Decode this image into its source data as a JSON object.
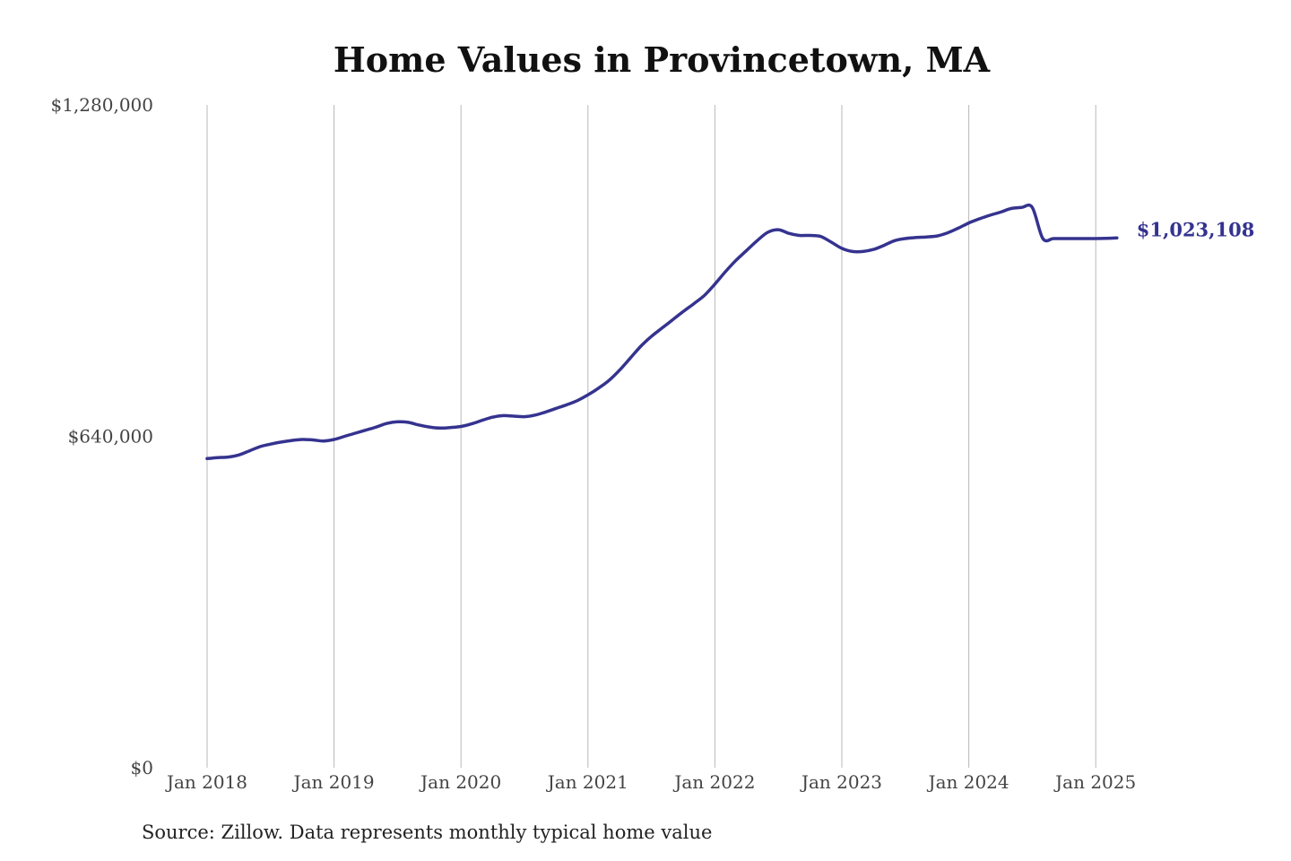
{
  "chart_data": {
    "type": "line",
    "title": "Home Values in Provincetown, MA",
    "source_note": "Source: Zillow. Data represents monthly typical home value",
    "xlabel": "",
    "ylabel": "",
    "ylim": [
      0,
      1280000
    ],
    "y_ticks": [
      {
        "value": 0,
        "label": "$0"
      },
      {
        "value": 640000,
        "label": "$640,000"
      },
      {
        "value": 1280000,
        "label": "$1,280,000"
      }
    ],
    "x_ticks": [
      {
        "date": "2018-01",
        "label": "Jan 2018"
      },
      {
        "date": "2019-01",
        "label": "Jan 2019"
      },
      {
        "date": "2020-01",
        "label": "Jan 2020"
      },
      {
        "date": "2021-01",
        "label": "Jan 2021"
      },
      {
        "date": "2022-01",
        "label": "Jan 2022"
      },
      {
        "date": "2023-01",
        "label": "Jan 2023"
      },
      {
        "date": "2024-01",
        "label": "Jan 2024"
      },
      {
        "date": "2025-01",
        "label": "Jan 2025"
      }
    ],
    "xlim": [
      "2018-01",
      "2025-03"
    ],
    "grid": "vertical",
    "line_color": "#35338f",
    "end_label": "$1,023,108",
    "x": [
      "2018-01",
      "2018-02",
      "2018-03",
      "2018-04",
      "2018-05",
      "2018-06",
      "2018-07",
      "2018-08",
      "2018-09",
      "2018-10",
      "2018-11",
      "2018-12",
      "2019-01",
      "2019-02",
      "2019-03",
      "2019-04",
      "2019-05",
      "2019-06",
      "2019-07",
      "2019-08",
      "2019-09",
      "2019-10",
      "2019-11",
      "2019-12",
      "2020-01",
      "2020-02",
      "2020-03",
      "2020-04",
      "2020-05",
      "2020-06",
      "2020-07",
      "2020-08",
      "2020-09",
      "2020-10",
      "2020-11",
      "2020-12",
      "2021-01",
      "2021-02",
      "2021-03",
      "2021-04",
      "2021-05",
      "2021-06",
      "2021-07",
      "2021-08",
      "2021-09",
      "2021-10",
      "2021-11",
      "2021-12",
      "2022-01",
      "2022-02",
      "2022-03",
      "2022-04",
      "2022-05",
      "2022-06",
      "2022-07",
      "2022-08",
      "2022-09",
      "2022-10",
      "2022-11",
      "2022-12",
      "2023-01",
      "2023-02",
      "2023-03",
      "2023-04",
      "2023-05",
      "2023-06",
      "2023-07",
      "2023-08",
      "2023-09",
      "2023-10",
      "2023-11",
      "2023-12",
      "2024-01",
      "2024-02",
      "2024-03",
      "2024-04",
      "2024-05",
      "2024-06",
      "2024-07",
      "2024-08",
      "2024-09",
      "2024-10",
      "2024-11",
      "2024-12",
      "2025-01",
      "2025-02",
      "2025-03"
    ],
    "series": [
      {
        "values": [
          597000,
          599000,
          600000,
          604000,
          612000,
          620000,
          625000,
          629000,
          632000,
          634000,
          633000,
          631000,
          634000,
          640000,
          646000,
          652000,
          658000,
          665000,
          668000,
          667000,
          662000,
          658000,
          656000,
          657000,
          659000,
          664000,
          671000,
          677000,
          680000,
          679000,
          678000,
          681000,
          687000,
          694000,
          701000,
          709000,
          720000,
          733000,
          748000,
          768000,
          791000,
          814000,
          833000,
          849000,
          865000,
          881000,
          896000,
          912000,
          934000,
          958000,
          980000,
          999000,
          1018000,
          1034000,
          1039000,
          1032000,
          1028000,
          1028000,
          1026000,
          1015000,
          1003000,
          997000,
          997000,
          1001000,
          1009000,
          1018000,
          1022000,
          1024000,
          1025000,
          1027000,
          1033000,
          1042000,
          1052000,
          1060000,
          1067000,
          1073000,
          1080000,
          1082000,
          1082000,
          1022000,
          1022000,
          1022000,
          1022000,
          1022000,
          1022000,
          1022500,
          1023108
        ]
      }
    ]
  }
}
